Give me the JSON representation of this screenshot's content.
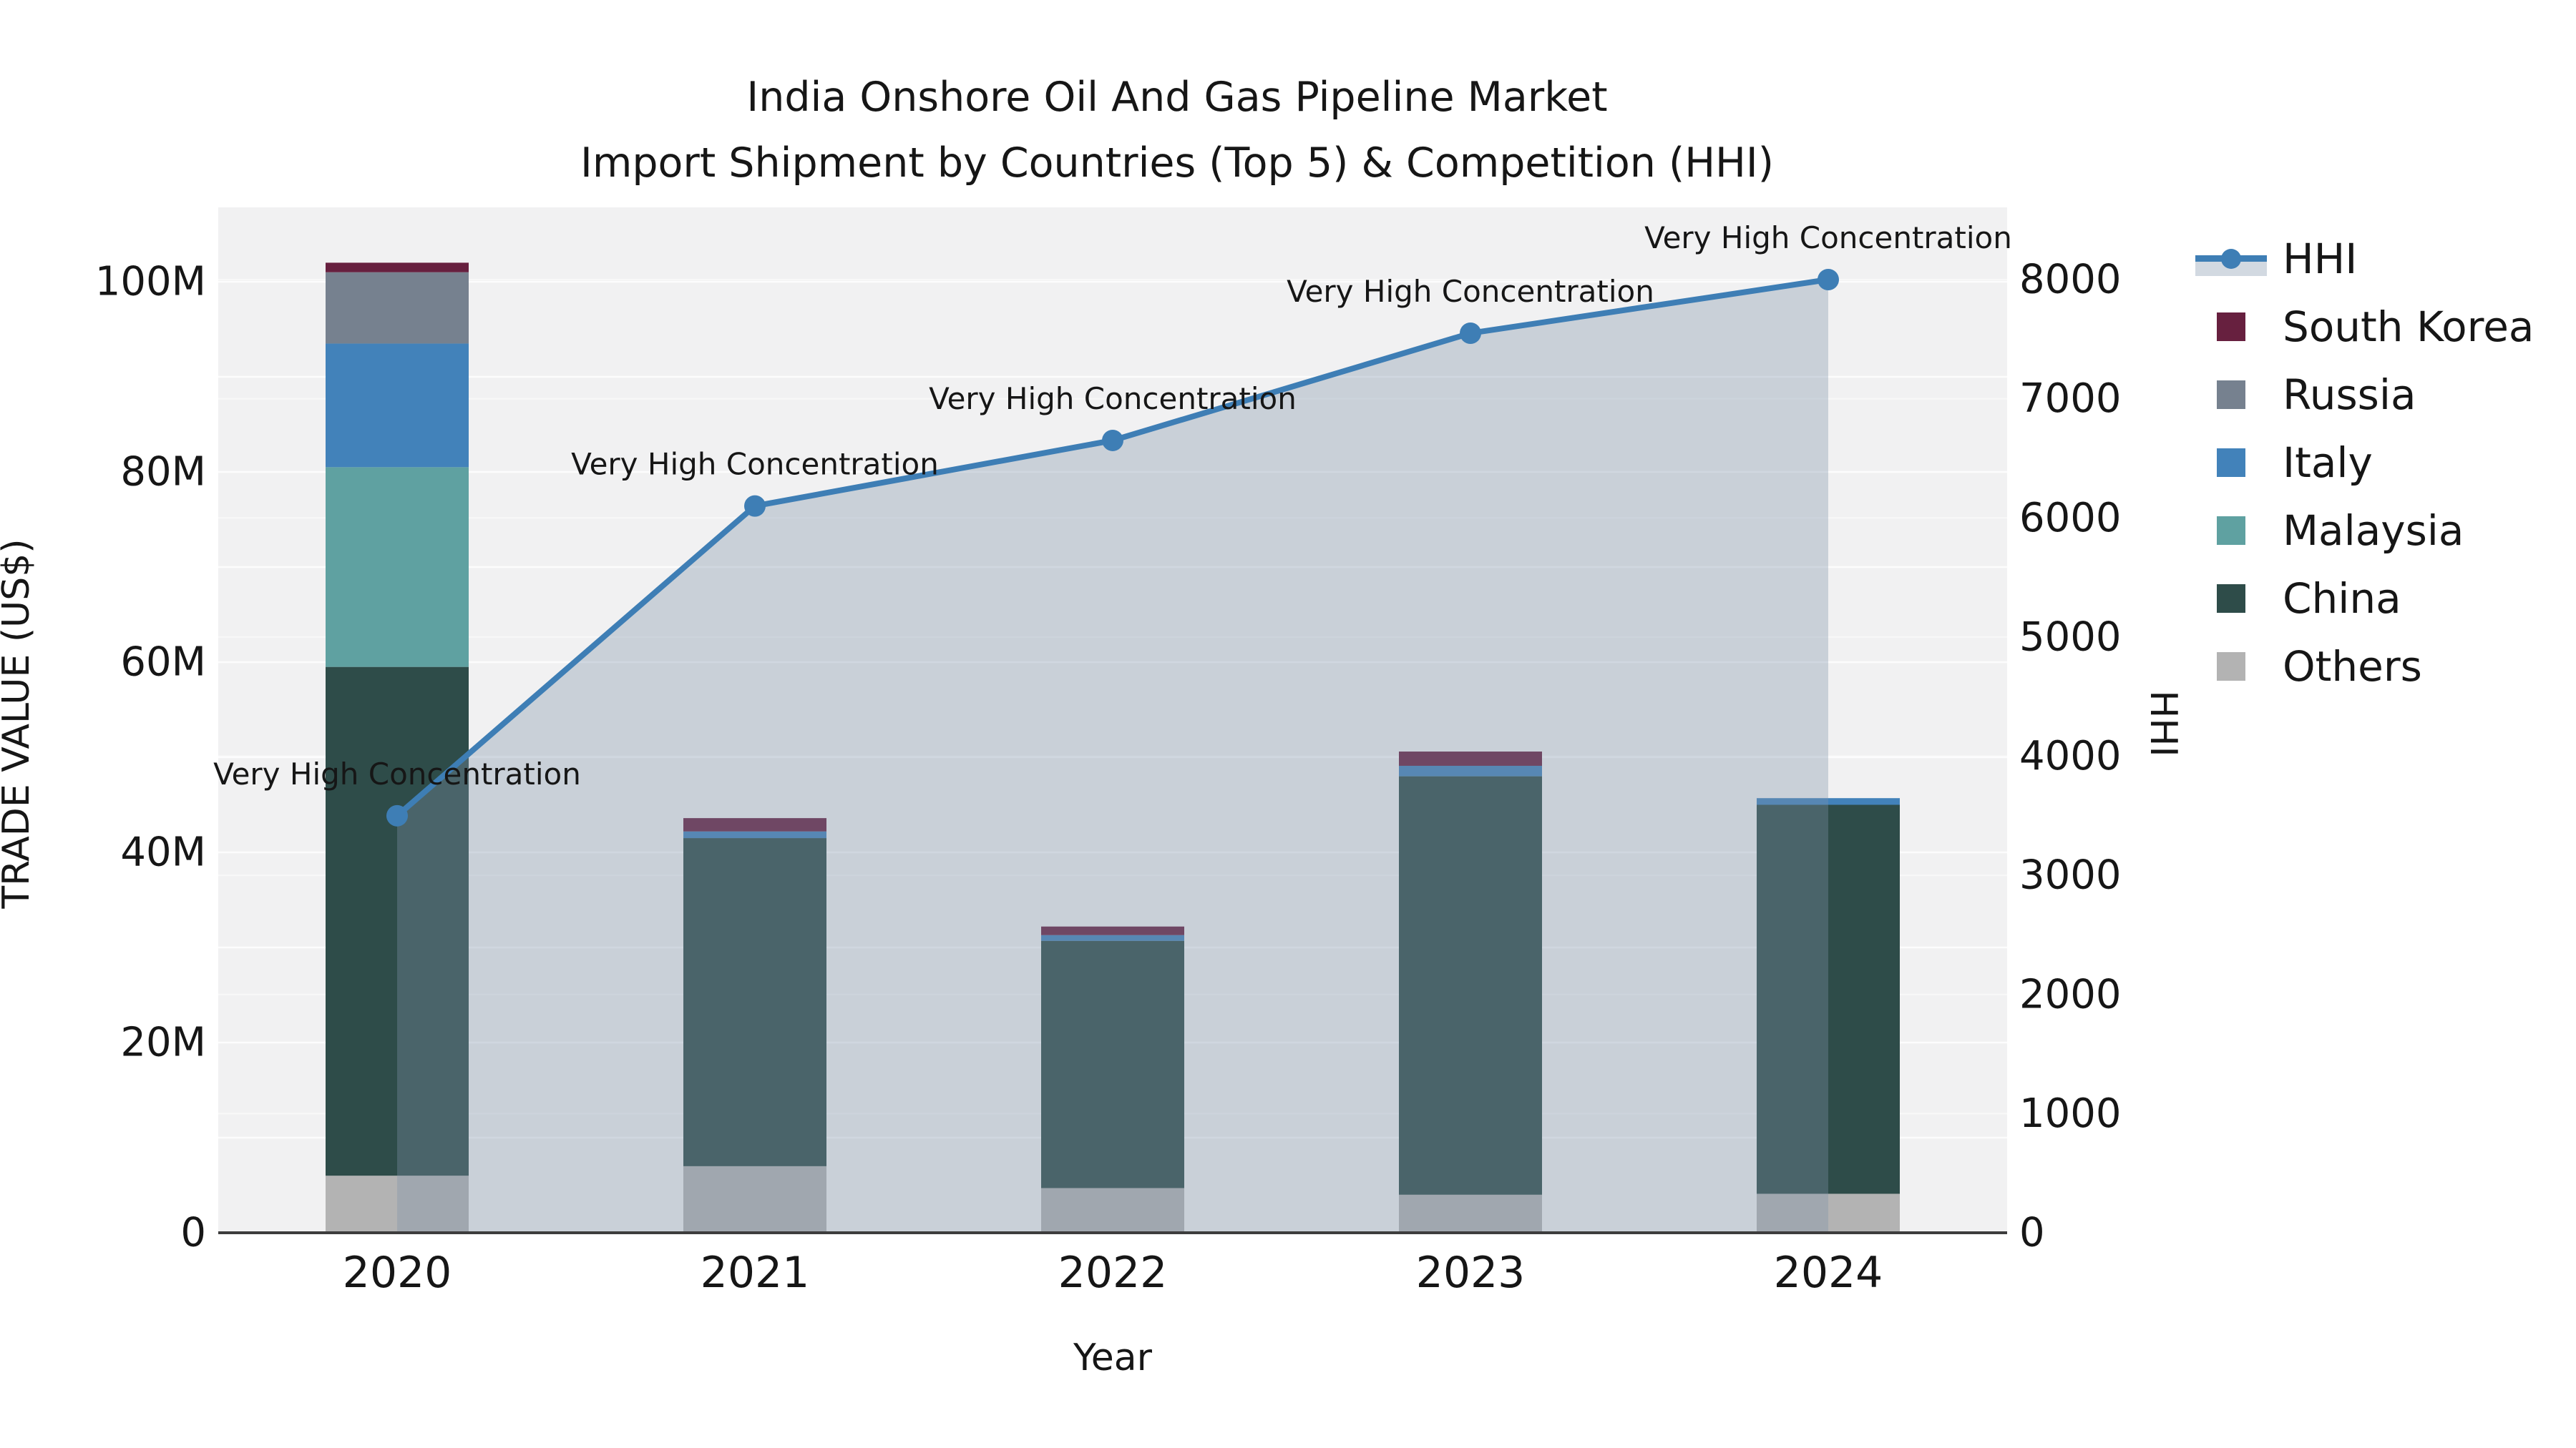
{
  "chart_data": {
    "type": "bar",
    "subtype": "stacked-bars-with-line-area-overlay",
    "title": "India Onshore Oil And Gas Pipeline Market",
    "subtitle": "Import Shipment by Countries (Top 5) & Competition (HHI)",
    "xlabel": "Year",
    "categories": [
      "2020",
      "2021",
      "2022",
      "2023",
      "2024"
    ],
    "left_axis": {
      "label": "TRADE VALUE (US$)",
      "units": "million US$",
      "tick_labels": [
        "0",
        "20M",
        "40M",
        "60M",
        "80M",
        "100M"
      ],
      "tick_values": [
        0,
        20,
        40,
        60,
        80,
        100
      ],
      "range": [
        0,
        107.8
      ],
      "gridline_step": 10
    },
    "right_axis": {
      "label": "HHI",
      "tick_labels": [
        "0",
        "1000",
        "2000",
        "3000",
        "4000",
        "5000",
        "6000",
        "7000",
        "8000"
      ],
      "tick_values": [
        0,
        1000,
        2000,
        3000,
        4000,
        5000,
        6000,
        7000,
        8000
      ],
      "range": [
        0,
        8600
      ],
      "gridline_step": 1000
    },
    "stack_order": "bottom_to_top",
    "bar_series": [
      {
        "name": "Others",
        "color": "#b3b3b3",
        "values": [
          6.0,
          7.0,
          4.7,
          4.0,
          4.1
        ]
      },
      {
        "name": "China",
        "color": "#2e4c49",
        "values": [
          53.5,
          34.5,
          26.0,
          44.0,
          40.9
        ]
      },
      {
        "name": "Malaysia",
        "color": "#5fa1a1",
        "values": [
          21.0,
          0,
          0,
          0,
          0
        ]
      },
      {
        "name": "Italy",
        "color": "#4282ba",
        "values": [
          13.0,
          0.7,
          0.6,
          1.1,
          0.7
        ]
      },
      {
        "name": "Russia",
        "color": "#76818f",
        "values": [
          7.5,
          0,
          0,
          0,
          0
        ]
      },
      {
        "name": "South Korea",
        "color": "#67203f",
        "values": [
          1.0,
          1.4,
          0.9,
          1.5,
          0
        ]
      }
    ],
    "line_series": {
      "name": "HHI",
      "color": "#3e7eb5",
      "area_fill": "rgba(125,145,170,0.35)",
      "values": [
        3500,
        6100,
        6650,
        7550,
        8000
      ],
      "annotations": [
        "Very High Concentration",
        "Very High Concentration",
        "Very High Concentration",
        "Very High Concentration",
        "Very High Concentration"
      ]
    },
    "legend": [
      {
        "label": "HHI",
        "type": "line",
        "color": "#3e7eb5"
      },
      {
        "label": "South Korea",
        "type": "patch",
        "color": "#67203f"
      },
      {
        "label": "Russia",
        "type": "patch",
        "color": "#76818f"
      },
      {
        "label": "Italy",
        "type": "patch",
        "color": "#4282ba"
      },
      {
        "label": "Malaysia",
        "type": "patch",
        "color": "#5fa1a1"
      },
      {
        "label": "China",
        "type": "patch",
        "color": "#2e4c49"
      },
      {
        "label": "Others",
        "type": "patch",
        "color": "#b3b3b3"
      }
    ],
    "plot_background": "#f1f1f2",
    "gridline_color": "#ffffff",
    "legend_position": "right-outside",
    "grid": "horizontal-only"
  }
}
